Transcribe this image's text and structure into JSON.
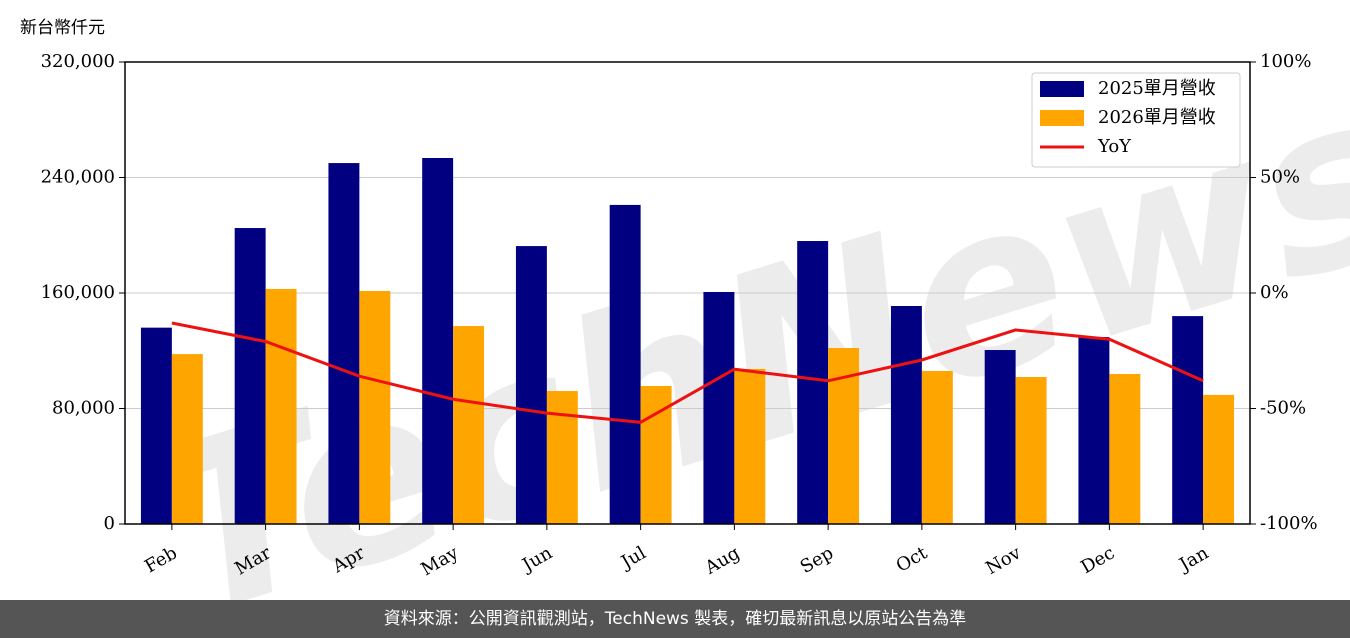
{
  "chart_data": {
    "type": "bar_line",
    "y_label": "新台幣仟元",
    "watermark": "TechNews",
    "categories": [
      "Feb",
      "Mar",
      "Apr",
      "May",
      "Jun",
      "Jul",
      "Aug",
      "Sep",
      "Oct",
      "Nov",
      "Dec",
      "Jan"
    ],
    "series": [
      {
        "name": "2025單月營收",
        "color": "#000080",
        "type": "bar",
        "values": [
          136000,
          205000,
          250000,
          253500,
          192500,
          221000,
          160700,
          196000,
          151000,
          120500,
          129500,
          144000
        ]
      },
      {
        "name": "2026單月營收",
        "color": "#ffa500",
        "type": "bar",
        "values": [
          117700,
          162800,
          161400,
          137100,
          92100,
          95600,
          107400,
          121900,
          106000,
          101800,
          103900,
          89400
        ]
      },
      {
        "name": "YoY",
        "color": "#ee1111",
        "type": "line",
        "axis": "y2",
        "values": [
          -13,
          -21,
          -36,
          -46,
          -52,
          -56,
          -33,
          -38,
          -29,
          -16,
          -20,
          -38
        ]
      }
    ],
    "ylim": [
      0,
      320000
    ],
    "yticks": [
      {
        "value": 0,
        "label": "0"
      },
      {
        "value": 80000,
        "label": "80,000"
      },
      {
        "value": 160000,
        "label": "160,000"
      },
      {
        "value": 240000,
        "label": "240,000"
      },
      {
        "value": 320000,
        "label": "320,000"
      }
    ],
    "y2lim": [
      -100,
      100
    ],
    "y2ticks": [
      {
        "value": -100,
        "label": "-100%"
      },
      {
        "value": -50,
        "label": "-50%"
      },
      {
        "value": 0,
        "label": "0%"
      },
      {
        "value": 50,
        "label": "50%"
      },
      {
        "value": 100,
        "label": "100%"
      }
    ],
    "grid": true,
    "legend": "upper right"
  },
  "footer": "資料來源：公開資訊觀測站，TechNews 製表，確切最新訊息以原站公告為準"
}
